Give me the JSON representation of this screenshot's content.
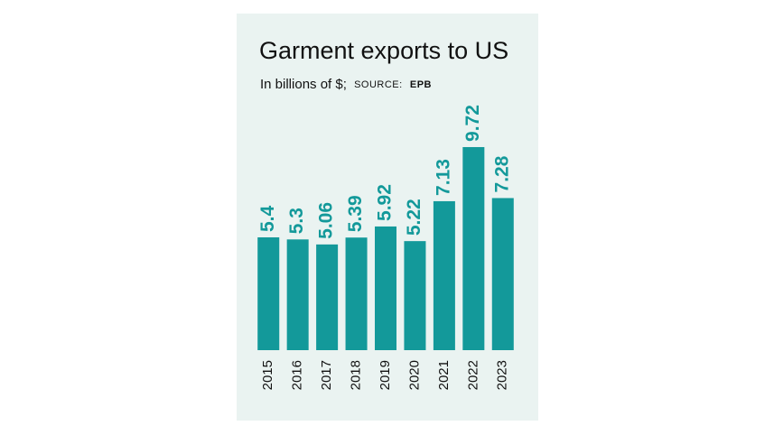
{
  "chart_data": {
    "type": "bar",
    "title": "Garment exports to US",
    "subtitle": "In billions of $;",
    "source_label": "SOURCE:",
    "source": "EPB",
    "categories": [
      "2015",
      "2016",
      "2017",
      "2018",
      "2019",
      "2020",
      "2021",
      "2022",
      "2023"
    ],
    "values": [
      5.4,
      5.3,
      5.06,
      5.39,
      5.92,
      5.22,
      7.13,
      9.72,
      7.28
    ],
    "color": "#13999a",
    "ylim": [
      0,
      10
    ]
  }
}
